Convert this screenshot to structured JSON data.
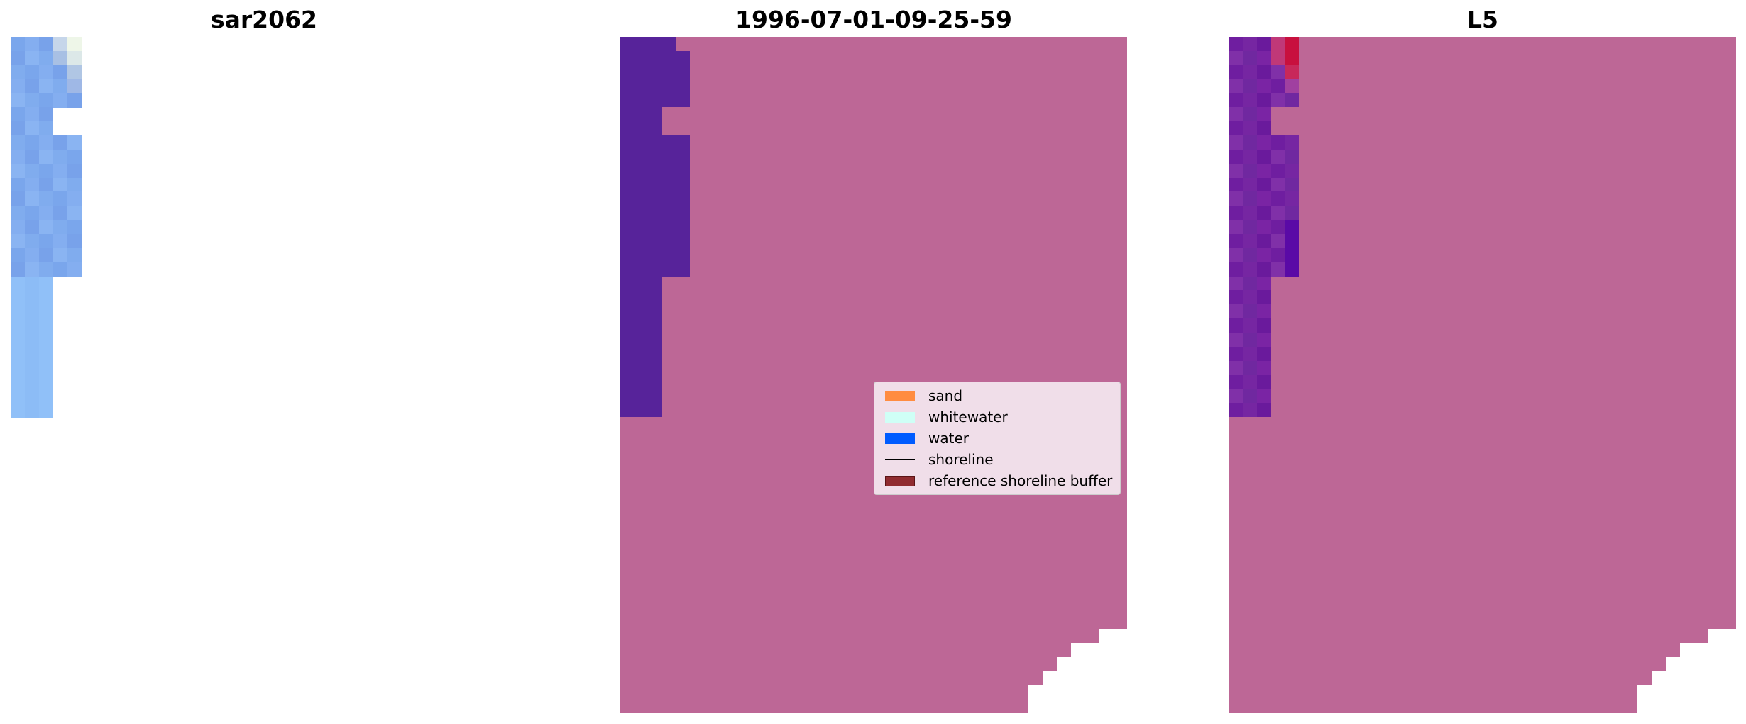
{
  "panels": [
    {
      "title": "sar2062"
    },
    {
      "title": "1996-07-01-09-25-59"
    },
    {
      "title": "L5"
    }
  ],
  "legend": {
    "entries": [
      {
        "label": "sand",
        "color": "#ff8c40",
        "kind": "patch"
      },
      {
        "label": "whitewater",
        "color": "#cffff6",
        "kind": "patch"
      },
      {
        "label": "water",
        "color": "#005cff",
        "kind": "patch"
      },
      {
        "label": "shoreline",
        "color": "#000000",
        "kind": "line"
      },
      {
        "label": "reference shoreline buffer",
        "color": "#902c30",
        "kind": "patch"
      }
    ]
  },
  "colors": {
    "sand_overlay": "#bd6796",
    "water_overlay": "#57239a"
  }
}
